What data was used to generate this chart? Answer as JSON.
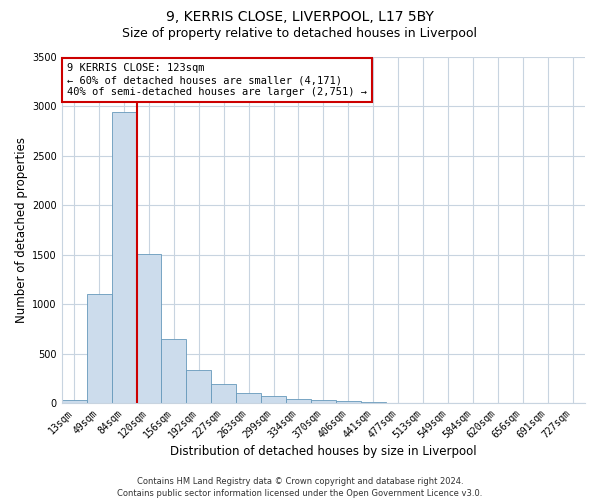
{
  "title": "9, KERRIS CLOSE, LIVERPOOL, L17 5BY",
  "subtitle": "Size of property relative to detached houses in Liverpool",
  "xlabel": "Distribution of detached houses by size in Liverpool",
  "ylabel": "Number of detached properties",
  "bar_color": "#ccdcec",
  "bar_edge_color": "#6699bb",
  "bin_labels": [
    "13sqm",
    "49sqm",
    "84sqm",
    "120sqm",
    "156sqm",
    "192sqm",
    "227sqm",
    "263sqm",
    "299sqm",
    "334sqm",
    "370sqm",
    "406sqm",
    "441sqm",
    "477sqm",
    "513sqm",
    "549sqm",
    "584sqm",
    "620sqm",
    "656sqm",
    "691sqm",
    "727sqm"
  ],
  "bar_values": [
    40,
    1100,
    2940,
    1510,
    650,
    335,
    195,
    105,
    80,
    48,
    35,
    20,
    18,
    8,
    0,
    0,
    0,
    0,
    0,
    0,
    0
  ],
  "ylim": [
    0,
    3500
  ],
  "yticks": [
    0,
    500,
    1000,
    1500,
    2000,
    2500,
    3000,
    3500
  ],
  "vline_x_idx": 2.5,
  "vline_color": "#cc0000",
  "annotation_title": "9 KERRIS CLOSE: 123sqm",
  "annotation_line1": "← 60% of detached houses are smaller (4,171)",
  "annotation_line2": "40% of semi-detached houses are larger (2,751) →",
  "annotation_box_color": "#cc0000",
  "footer_line1": "Contains HM Land Registry data © Crown copyright and database right 2024.",
  "footer_line2": "Contains public sector information licensed under the Open Government Licence v3.0.",
  "plot_bg_color": "#ffffff",
  "fig_bg_color": "#ffffff",
  "grid_color": "#c8d4e0",
  "title_fontsize": 10,
  "subtitle_fontsize": 9,
  "axis_label_fontsize": 8.5,
  "tick_fontsize": 7,
  "annotation_fontsize": 7.5,
  "footer_fontsize": 6
}
